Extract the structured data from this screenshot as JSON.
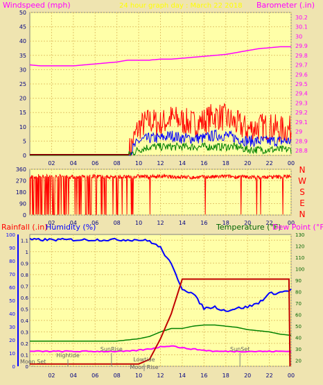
{
  "header": {
    "left_label": "Windspeed (mph)",
    "title": "24 hour graph day : March 22 2018",
    "right_label": "Barometer (.in)"
  },
  "colors": {
    "background": "#efe4b0",
    "plot_bg": "#ffffa8",
    "grid": "#e3c56a",
    "pink": "#ff00ff",
    "red": "#ff0000",
    "blue": "#0000ff",
    "green": "#008000",
    "dark_red": "#c00000"
  },
  "chart_data": [
    {
      "type": "line",
      "title": "24 hour graph day : March 22 2018",
      "ylabel": "Windspeed (mph)",
      "y2label": "Barometer (.in)",
      "ylim": [
        0,
        50
      ],
      "y2lim": [
        28.75,
        30.25
      ],
      "x_ticks": [
        "02",
        "04",
        "06",
        "08",
        "10",
        "12",
        "14",
        "16",
        "18",
        "20",
        "22",
        "00"
      ],
      "y_ticks": [
        0,
        5,
        10,
        15,
        20,
        25,
        30,
        35,
        40,
        45,
        50
      ],
      "y2_ticks": [
        "28.8",
        "28.9",
        "29",
        "29.1",
        "29.2",
        "29.3",
        "29.4",
        "29.5",
        "29.6",
        "29.7",
        "29.8",
        "29.9",
        "30",
        "30.1",
        "30.2"
      ],
      "x": [
        0,
        1,
        2,
        3,
        4,
        5,
        6,
        7,
        8,
        9,
        10,
        11,
        12,
        13,
        14,
        15,
        16,
        17,
        18,
        19,
        20,
        21,
        22,
        23,
        24
      ],
      "series": [
        {
          "name": "Barometer",
          "axis": "right",
          "color": "#ff00ff",
          "values": [
            29.7,
            29.69,
            29.69,
            29.69,
            29.69,
            29.7,
            29.71,
            29.72,
            29.73,
            29.75,
            29.75,
            29.75,
            29.76,
            29.76,
            29.77,
            29.78,
            29.79,
            29.8,
            29.81,
            29.83,
            29.85,
            29.87,
            29.88,
            29.89,
            29.89
          ]
        },
        {
          "name": "Gust",
          "color": "#ff0000",
          "values": [
            0,
            0,
            0,
            0,
            0,
            0,
            0,
            0,
            0,
            0,
            10,
            12,
            11,
            13,
            12,
            11,
            12,
            14,
            13,
            11,
            9,
            10,
            10,
            9,
            9
          ]
        },
        {
          "name": "Avg speed",
          "color": "#0000ff",
          "values": [
            0,
            0,
            0,
            0,
            0,
            0,
            0,
            0,
            0,
            0,
            5,
            6,
            6,
            7,
            6,
            6,
            6,
            7,
            7,
            6,
            5,
            5,
            5,
            5,
            5
          ]
        },
        {
          "name": "Min speed",
          "color": "#008000",
          "values": [
            0,
            0,
            0,
            0,
            0,
            0,
            0,
            0,
            0,
            0,
            2,
            3,
            3,
            3,
            3,
            3,
            3,
            3,
            3,
            3,
            2,
            2,
            2,
            2,
            2
          ]
        }
      ]
    },
    {
      "type": "line",
      "ylabel": "Wind direction",
      "ylim": [
        0,
        360
      ],
      "y_ticks": [
        0,
        90,
        180,
        270,
        360
      ],
      "direction_labels": [
        "N",
        "W",
        "S",
        "E",
        "N"
      ],
      "x_ticks": [
        "02",
        "04",
        "06",
        "08",
        "10",
        "12",
        "14",
        "16",
        "18",
        "20",
        "22",
        "00"
      ],
      "x": [
        0,
        1,
        2,
        3,
        4,
        5,
        6,
        7,
        8,
        9,
        10,
        11,
        12,
        13,
        14,
        15,
        16,
        17,
        18,
        19,
        20,
        21,
        22,
        23,
        24
      ],
      "series": [
        {
          "name": "Direction",
          "color": "#ff0000",
          "values": [
            300,
            310,
            300,
            305,
            300,
            300,
            305,
            300,
            300,
            300,
            305,
            300,
            305,
            300,
            300,
            295,
            300,
            300,
            305,
            300,
            300,
            295,
            300,
            300,
            305
          ]
        }
      ]
    },
    {
      "type": "line",
      "left_label": "Rainfall (.in)",
      "left2_label": "Humidity (%)",
      "right_label": "Temperature (°F)",
      "right2_label": "Dew Point (°F)",
      "rain_ylim": [
        0,
        1.15
      ],
      "hum_ylim": [
        0,
        100
      ],
      "temp_ylim": [
        15,
        130
      ],
      "rain_ticks": [
        "0",
        "0.1",
        "0.2",
        "0.3",
        "0.4",
        "0.5",
        "0.6",
        "0.7",
        "0.8",
        "0.9",
        "1",
        "1.1"
      ],
      "hum_ticks": [
        "0",
        "10",
        "20",
        "30",
        "40",
        "50",
        "60",
        "70",
        "80",
        "90",
        "100"
      ],
      "temp_ticks": [
        "20",
        "30",
        "40",
        "50",
        "60",
        "70",
        "80",
        "90",
        "100",
        "110",
        "120",
        "130"
      ],
      "x_ticks": [
        "02",
        "04",
        "06",
        "08",
        "10",
        "12",
        "14",
        "16",
        "18",
        "20",
        "22",
        "00"
      ],
      "x": [
        0,
        1,
        2,
        3,
        4,
        5,
        6,
        7,
        8,
        9,
        10,
        11,
        12,
        13,
        14,
        15,
        16,
        17,
        18,
        19,
        20,
        21,
        22,
        23,
        24
      ],
      "series": [
        {
          "name": "Humidity",
          "axis": "humidity",
          "color": "#0000ff",
          "values": [
            96,
            96,
            96,
            96,
            96,
            96,
            96,
            96,
            96,
            96,
            96,
            95,
            90,
            77,
            59,
            55,
            44,
            45,
            42,
            44,
            45,
            48,
            55,
            56,
            58
          ]
        },
        {
          "name": "Rainfall",
          "axis": "rain",
          "color": "#c00000",
          "values": [
            0.02,
            0.02,
            0.02,
            0.02,
            0.02,
            0.02,
            0.02,
            0.02,
            0.02,
            0.02,
            0.02,
            0.06,
            0.24,
            0.46,
            0.76,
            0.76,
            0.76,
            0.76,
            0.76,
            0.76,
            0.76,
            0.76,
            0.76,
            0.76,
            0.76
          ]
        },
        {
          "name": "Temperature",
          "axis": "temperature",
          "color": "#008000",
          "values": [
            37,
            37,
            37,
            37,
            37,
            37,
            37,
            37,
            37,
            38,
            39,
            41,
            45,
            48,
            48,
            50,
            51,
            51,
            50,
            49,
            47,
            46,
            45,
            43,
            42
          ]
        },
        {
          "name": "Dew Point",
          "axis": "temperature",
          "color": "#ff00ff",
          "values": [
            28,
            28,
            28,
            28,
            28,
            28,
            28,
            28,
            28,
            28,
            29,
            30,
            32,
            33,
            31,
            30,
            29,
            28,
            28,
            28,
            28,
            28,
            28,
            28,
            28
          ]
        }
      ],
      "annotations": {
        "moon_set": "Moon Set",
        "hightide": "Hightide",
        "sunrise": "SunRise",
        "lowtide": "Lowtide",
        "moonrise": "Moon Rise",
        "sunset": "SunSet"
      }
    }
  ]
}
